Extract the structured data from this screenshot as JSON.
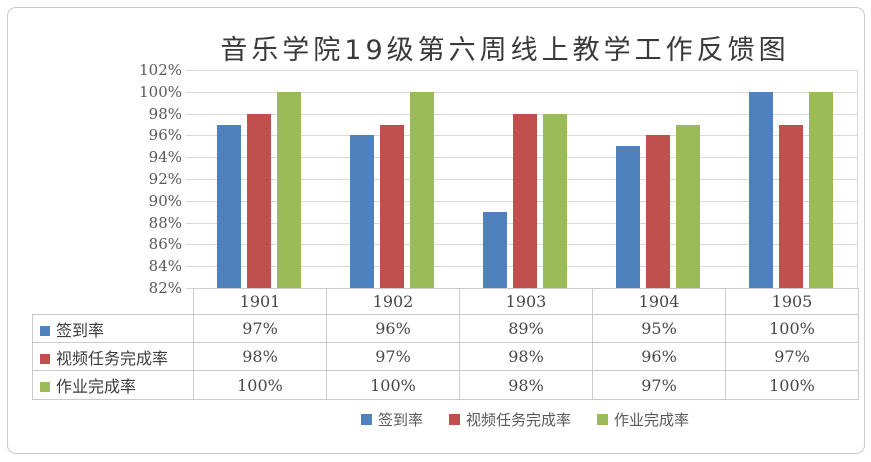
{
  "figure": {
    "title": "音乐学院19级第六周线上教学工作反馈图"
  },
  "chart_data": {
    "type": "bar",
    "title": "音乐学院19级第六周线上教学工作反馈图",
    "categories": [
      "1901",
      "1902",
      "1903",
      "1904",
      "1905"
    ],
    "series": [
      {
        "name": "签到率",
        "color": "#4F81BD",
        "values": [
          97,
          96,
          89,
          95,
          100
        ],
        "display": [
          "97%",
          "96%",
          "89%",
          "95%",
          "100%"
        ]
      },
      {
        "name": "视频任务完成率",
        "color": "#C0504D",
        "values": [
          98,
          97,
          98,
          96,
          97
        ],
        "display": [
          "98%",
          "97%",
          "98%",
          "96%",
          "97%"
        ]
      },
      {
        "name": "作业完成率",
        "color": "#9BBB59",
        "values": [
          100,
          100,
          98,
          97,
          100
        ],
        "display": [
          "100%",
          "100%",
          "98%",
          "97%",
          "100%"
        ]
      }
    ],
    "y_axis": {
      "min": 82,
      "max": 102,
      "step": 2,
      "unit": "%",
      "tick_labels": [
        "102%",
        "100%",
        "98%",
        "96%",
        "94%",
        "92%",
        "90%",
        "88%",
        "86%",
        "84%",
        "82%"
      ]
    },
    "grid": true,
    "legend": {
      "position": "bottom",
      "entries": [
        "签到率",
        "视频任务完成率",
        "作业完成率"
      ]
    },
    "data_table": {
      "shown": true,
      "row_headers": [
        "签到率",
        "视频任务完成率",
        "作业完成率"
      ]
    }
  }
}
